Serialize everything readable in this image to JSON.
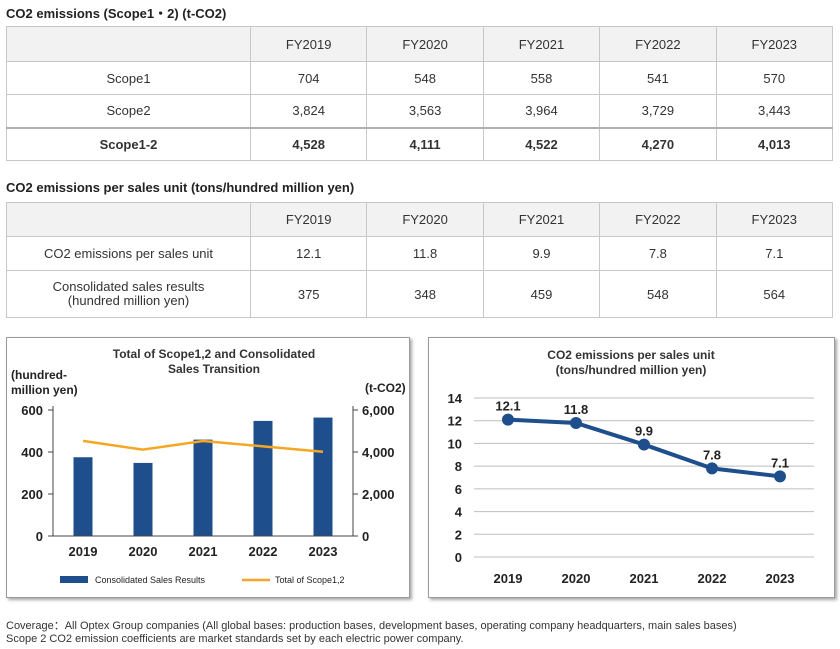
{
  "table1": {
    "title": "CO2 emissions (Scope1・2) (t-CO2)",
    "years": [
      "FY2019",
      "FY2020",
      "FY2021",
      "FY2022",
      "FY2023"
    ],
    "rows": [
      {
        "label": "Scope1",
        "values": [
          "704",
          "548",
          "558",
          "541",
          "570"
        ]
      },
      {
        "label": "Scope2",
        "values": [
          "3,824",
          "3,563",
          "3,964",
          "3,729",
          "3,443"
        ]
      },
      {
        "label": "Scope1-2",
        "values": [
          "4,528",
          "4,111",
          "4,522",
          "4,270",
          "4,013"
        ]
      }
    ]
  },
  "table2": {
    "title": "CO2 emissions per sales unit (tons/hundred million yen)",
    "years": [
      "FY2019",
      "FY2020",
      "FY2021",
      "FY2022",
      "FY2023"
    ],
    "rows": [
      {
        "label": "CO2 emissions per sales unit",
        "values": [
          "12.1",
          "11.8",
          "9.9",
          "7.8",
          "7.1"
        ]
      },
      {
        "label": "Consolidated sales results",
        "label2": "(hundred million yen)",
        "values": [
          "375",
          "348",
          "459",
          "548",
          "564"
        ]
      }
    ]
  },
  "chart_data": [
    {
      "type": "bar",
      "title": "Total of Scope1,2 and Consolidated",
      "title2": "Sales Transition",
      "ylabel_left": "(hundred-",
      "ylabel_left2": "million yen)",
      "ylabel_right": "(t-CO2)",
      "categories": [
        "2019",
        "2020",
        "2021",
        "2022",
        "2023"
      ],
      "ylim_left": [
        0,
        600
      ],
      "yticks_left": [
        "0",
        "200",
        "400",
        "600"
      ],
      "ylim_right": [
        0,
        6000
      ],
      "yticks_right": [
        "0",
        "2,000",
        "4,000",
        "6,000"
      ],
      "series": [
        {
          "name": "Consolidated Sales Results",
          "kind": "bar",
          "axis": "left",
          "color": "#1f4e8c",
          "values": [
            375,
            348,
            459,
            548,
            564
          ]
        },
        {
          "name": "Total of Scope1,2",
          "kind": "line",
          "axis": "right",
          "color": "#f5a623",
          "values": [
            4528,
            4111,
            4522,
            4270,
            4013
          ]
        }
      ],
      "legend_position": "bottom"
    },
    {
      "type": "line",
      "title": "CO2 emissions per sales unit",
      "title2": "(tons/hundred million yen)",
      "categories": [
        "2019",
        "2020",
        "2021",
        "2022",
        "2023"
      ],
      "ylim": [
        0,
        14
      ],
      "yticks": [
        "0",
        "2",
        "4",
        "6",
        "8",
        "10",
        "12",
        "14"
      ],
      "series": [
        {
          "color": "#1f4e8c",
          "values": [
            12.1,
            11.8,
            9.9,
            7.8,
            7.1
          ],
          "labels": [
            "12.1",
            "11.8",
            "9.9",
            "7.8",
            "7.1"
          ]
        }
      ]
    }
  ],
  "footnote": {
    "line1": "Coverage：All Optex Group companies (All global bases: production bases, development bases, operating company headquarters, main sales bases)",
    "line2": "Scope 2 CO2 emission coefficients are market standards set by each electric power company."
  }
}
